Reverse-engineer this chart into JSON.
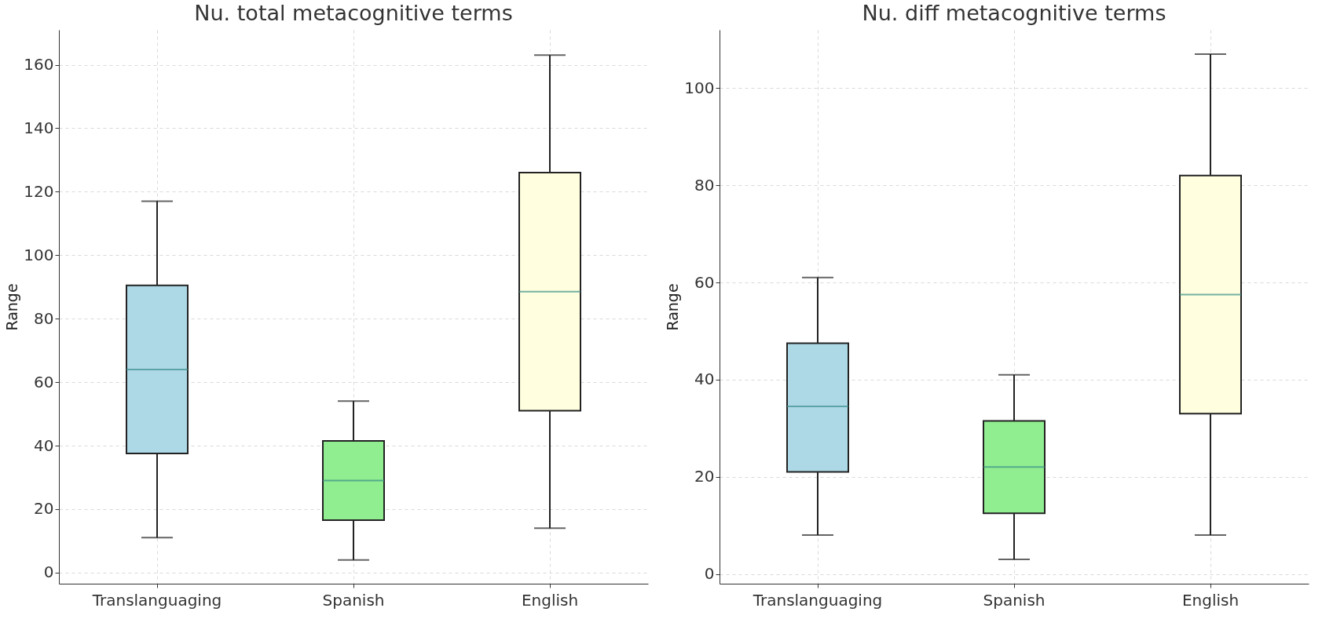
{
  "chart_data": [
    {
      "type": "box",
      "title": "Nu. total metacognitive terms",
      "ylabel": "Range",
      "categories": [
        "Translanguaging",
        "Spanish",
        "English"
      ],
      "colors": [
        "#add8e6",
        "#90ee90",
        "#ffffe0"
      ],
      "grid": true,
      "ylim": [
        -3.5,
        171
      ],
      "yticks": [
        0,
        20,
        40,
        60,
        80,
        100,
        120,
        140,
        160
      ],
      "boxes": [
        {
          "low": 11,
          "q1": 37.5,
          "median": 64,
          "q3": 90.5,
          "high": 117
        },
        {
          "low": 4,
          "q1": 16.5,
          "median": 29,
          "q3": 41.5,
          "high": 54
        },
        {
          "low": 14,
          "q1": 51,
          "median": 88.5,
          "q3": 126,
          "high": 163
        }
      ]
    },
    {
      "type": "box",
      "title": "Nu. diff metacognitive terms",
      "ylabel": "Range",
      "categories": [
        "Translanguaging",
        "Spanish",
        "English"
      ],
      "colors": [
        "#add8e6",
        "#90ee90",
        "#ffffe0"
      ],
      "grid": true,
      "ylim": [
        -2,
        112
      ],
      "yticks": [
        0,
        20,
        40,
        60,
        80,
        100
      ],
      "boxes": [
        {
          "low": 8,
          "q1": 21,
          "median": 34.5,
          "q3": 47.5,
          "high": 61
        },
        {
          "low": 3,
          "q1": 12.5,
          "median": 22,
          "q3": 31.5,
          "high": 41
        },
        {
          "low": 8,
          "q1": 33,
          "median": 57.5,
          "q3": 82,
          "high": 107
        }
      ]
    }
  ]
}
